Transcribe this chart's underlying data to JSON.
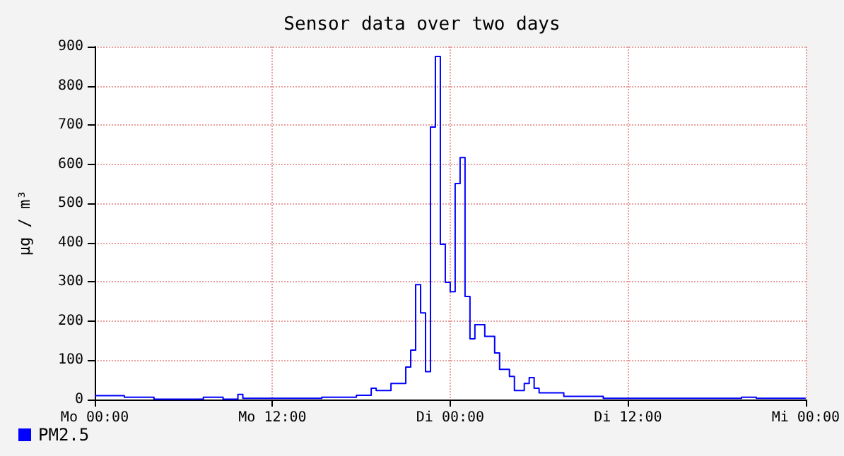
{
  "chart_data": {
    "type": "step",
    "title": "Sensor data over two days",
    "ylabel": "µg / m³",
    "categories": [
      "Mo 00:00",
      null,
      null,
      null,
      null,
      null,
      null,
      null,
      null,
      null,
      null,
      null,
      null,
      null,
      null,
      null,
      null,
      null,
      null,
      null,
      null,
      null,
      null,
      null,
      null,
      null,
      null,
      null,
      null,
      null,
      null,
      null,
      null,
      null,
      null,
      null,
      "Mo 12:00",
      null,
      null,
      null,
      null,
      null,
      null,
      null,
      null,
      null,
      null,
      null,
      null,
      null,
      null,
      null,
      null,
      null,
      null,
      null,
      null,
      null,
      null,
      null,
      null,
      null,
      null,
      null,
      null,
      null,
      null,
      null,
      null,
      null,
      null,
      null,
      "Di 00:00",
      null,
      null,
      null,
      null,
      null,
      null,
      null,
      null,
      null,
      null,
      null,
      null,
      null,
      null,
      null,
      null,
      null,
      null,
      null,
      null,
      null,
      null,
      null,
      null,
      null,
      null,
      null,
      null,
      null,
      null,
      null,
      null,
      null,
      null,
      null,
      "Di 12:00",
      null,
      null,
      null,
      null,
      null,
      null,
      null,
      null,
      null,
      null,
      null,
      null,
      null,
      null,
      null,
      null,
      null,
      null,
      null,
      null,
      null,
      null,
      null,
      null,
      null,
      null,
      null,
      null,
      null,
      null,
      null,
      null,
      null,
      null,
      null,
      "Mi 00:00"
    ],
    "series": [
      {
        "name": "PM2.5",
        "color": "#0000ff",
        "values": [
          10,
          10,
          10,
          10,
          10,
          10,
          6,
          6,
          6,
          6,
          6,
          6,
          1,
          1,
          1,
          1,
          1,
          1,
          1,
          1,
          1,
          1,
          6,
          6,
          6,
          6,
          1,
          1,
          1,
          13,
          3,
          3,
          3,
          3,
          3,
          3,
          3,
          3,
          3,
          3,
          3,
          3,
          3,
          3,
          3,
          3,
          6,
          6,
          6,
          6,
          6,
          6,
          6,
          11,
          11,
          11,
          29,
          23,
          23,
          23,
          41,
          41,
          41,
          83,
          126,
          293,
          221,
          71,
          695,
          875,
          396,
          299,
          275,
          551,
          617,
          263,
          155,
          191,
          191,
          161,
          161,
          119,
          77,
          77,
          59,
          23,
          23,
          41,
          56,
          29,
          17,
          17,
          17,
          17,
          17,
          8,
          8,
          8,
          8,
          8,
          8,
          8,
          8,
          3,
          3,
          3,
          3,
          3,
          3,
          3,
          3,
          3,
          3,
          3,
          3,
          3,
          3,
          3,
          3,
          3,
          3,
          3,
          3,
          3,
          3,
          3,
          3,
          3,
          3,
          3,
          3,
          6,
          6,
          6,
          3,
          3,
          3,
          3,
          3,
          3,
          3,
          3,
          3,
          3,
          3
        ]
      }
    ],
    "ylim": [
      0,
      900
    ],
    "yticks": [
      0,
      100,
      200,
      300,
      400,
      500,
      600,
      700,
      800,
      900
    ],
    "grid": true,
    "legend": "bottom left"
  }
}
